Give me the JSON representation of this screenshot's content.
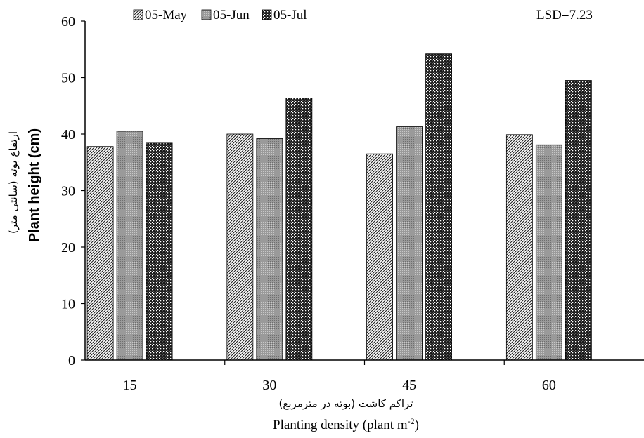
{
  "chart_data": {
    "type": "bar",
    "categories": [
      "15",
      "30",
      "45",
      "60"
    ],
    "series": [
      {
        "name": "05-May",
        "values": [
          37.8,
          40.0,
          36.5,
          39.9
        ],
        "pattern": "diag"
      },
      {
        "name": "05-Jun",
        "values": [
          40.5,
          39.2,
          41.3,
          38.1
        ],
        "pattern": "gray"
      },
      {
        "name": "05-Jul",
        "values": [
          38.4,
          46.4,
          54.2,
          49.5
        ],
        "pattern": "dots"
      }
    ],
    "ylim": [
      0,
      60
    ],
    "yticks": [
      "0",
      "10",
      "20",
      "30",
      "40",
      "50",
      "60"
    ],
    "ylabel": "Plant height (cm)",
    "ylabel_fa": "ارتفاع بوته (سانتی متر)",
    "xlabel": "Planting density (plant m",
    "xlabel_sup": "-2",
    "xlabel_end": ")",
    "xlabel_fa": "تراکم کاشت (بوته در مترمربع)",
    "annotation": "LSD=7.23",
    "legend_position": "top-left",
    "grid": false
  }
}
